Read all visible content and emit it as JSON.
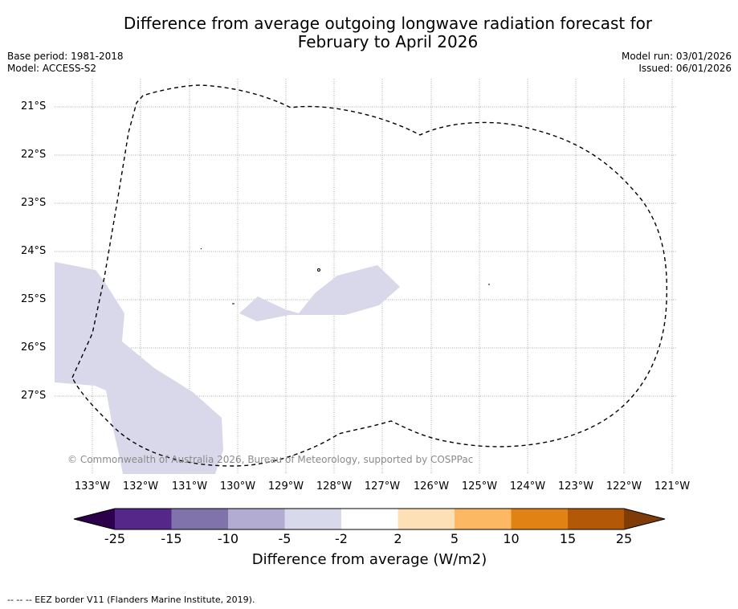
{
  "title": {
    "line1": "Difference from average outgoing longwave radiation forecast for",
    "line2": "February to April 2026"
  },
  "meta": {
    "base_period": "Base period: 1981-2018",
    "model": "Model: ACCESS-S2",
    "model_run": "Model run: 03/01/2026",
    "issued": "Issued: 06/01/2026"
  },
  "map": {
    "lat_labels": [
      "21°S",
      "22°S",
      "23°S",
      "24°S",
      "25°S",
      "26°S",
      "27°S"
    ],
    "lon_labels": [
      "133°W",
      "132°W",
      "131°W",
      "130°W",
      "129°W",
      "128°W",
      "127°W",
      "126°W",
      "125°W",
      "124°W",
      "123°W",
      "122°W",
      "121°W"
    ],
    "shaded_category": "-5 to -2",
    "shade_color": "#d8d8ea",
    "copyright": "© Commonwealth of Australia 2026, Bureau of Meteorology, supported by COSPPac"
  },
  "colorbar": {
    "ticks": [
      "-25",
      "-15",
      "-10",
      "-5",
      "-2",
      "2",
      "5",
      "10",
      "15",
      "25"
    ],
    "colors": [
      "#2d004b",
      "#542788",
      "#8073ac",
      "#b2abd2",
      "#d8daeb",
      "#ffffff",
      "#fee0b6",
      "#fdb863",
      "#e08214",
      "#b35806",
      "#7f3b08"
    ],
    "label": "Difference from average (W/m2)"
  },
  "footnote": "--  --  -- EEZ border V11 (Flanders Marine Institute, 2019)."
}
